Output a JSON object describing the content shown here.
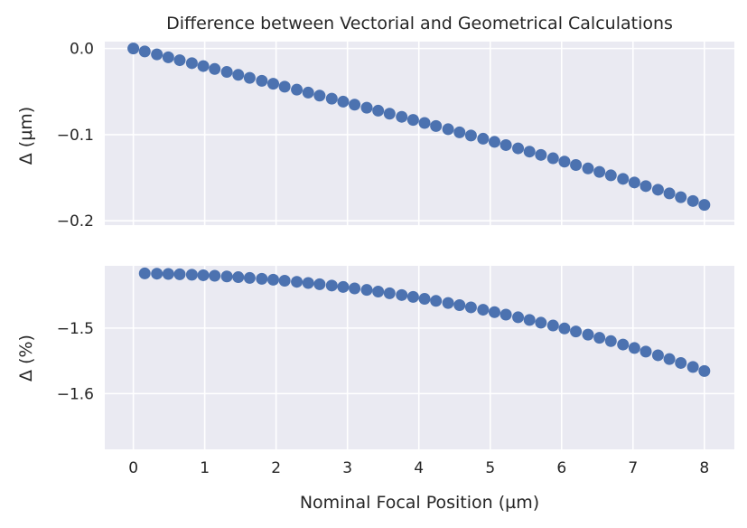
{
  "chart_data": [
    {
      "type": "scatter",
      "title": "Difference between Vectorial and Geometrical Calculations",
      "xlabel": "",
      "ylabel": "Δ (µm)",
      "xlim": [
        -0.4,
        8.42
      ],
      "ylim": [
        -0.205,
        0.008
      ],
      "grid": true,
      "color": "#4c72b0",
      "xticks": [
        0,
        1,
        2,
        3,
        4,
        5,
        6,
        7,
        8
      ],
      "xtick_labels_visible": false,
      "yticks": [
        0.0,
        -0.1,
        -0.2
      ],
      "ytick_labels": [
        "0.0",
        "−0.1",
        "−0.2"
      ],
      "series": [
        {
          "x": [
            0.0,
            0.16,
            0.33,
            0.49,
            0.65,
            0.82,
            0.98,
            1.14,
            1.31,
            1.47,
            1.63,
            1.8,
            1.96,
            2.12,
            2.29,
            2.45,
            2.61,
            2.78,
            2.94,
            3.1,
            3.27,
            3.43,
            3.59,
            3.76,
            3.92,
            4.08,
            4.24,
            4.41,
            4.57,
            4.73,
            4.9,
            5.06,
            5.22,
            5.39,
            5.55,
            5.71,
            5.88,
            6.04,
            6.2,
            6.37,
            6.53,
            6.69,
            6.86,
            7.02,
            7.18,
            7.35,
            7.51,
            7.67,
            7.84,
            8.0
          ],
          "y": [
            0.0,
            -0.0034,
            -0.0068,
            -0.0102,
            -0.0136,
            -0.017,
            -0.0204,
            -0.0238,
            -0.0272,
            -0.0306,
            -0.0341,
            -0.0375,
            -0.0409,
            -0.0443,
            -0.0478,
            -0.0512,
            -0.0547,
            -0.0582,
            -0.0617,
            -0.0652,
            -0.0687,
            -0.0722,
            -0.0757,
            -0.0793,
            -0.0829,
            -0.0864,
            -0.09,
            -0.0937,
            -0.0973,
            -0.101,
            -0.1047,
            -0.1084,
            -0.1121,
            -0.1159,
            -0.1197,
            -0.1235,
            -0.1274,
            -0.1313,
            -0.1352,
            -0.1392,
            -0.1432,
            -0.1472,
            -0.1513,
            -0.1555,
            -0.1597,
            -0.1639,
            -0.1682,
            -0.1726,
            -0.177,
            -0.1815
          ]
        }
      ]
    },
    {
      "type": "scatter",
      "title": "",
      "xlabel": "Nominal Focal Position (µm)",
      "ylabel": "Δ (%)",
      "xlim": [
        -0.4,
        8.42
      ],
      "ylim": [
        -1.685,
        -1.405
      ],
      "grid": true,
      "color": "#4c72b0",
      "xticks": [
        0,
        1,
        2,
        3,
        4,
        5,
        6,
        7,
        8
      ],
      "xtick_labels": [
        "0",
        "1",
        "2",
        "3",
        "4",
        "5",
        "6",
        "7",
        "8"
      ],
      "yticks": [
        -1.5,
        -1.6
      ],
      "ytick_labels": [
        "−1.5",
        "−1.6"
      ],
      "series": [
        {
          "x": [
            0.16,
            0.33,
            0.49,
            0.65,
            0.82,
            0.98,
            1.14,
            1.31,
            1.47,
            1.63,
            1.8,
            1.96,
            2.12,
            2.29,
            2.45,
            2.61,
            2.78,
            2.94,
            3.1,
            3.27,
            3.43,
            3.59,
            3.76,
            3.92,
            4.08,
            4.24,
            4.41,
            4.57,
            4.73,
            4.9,
            5.06,
            5.22,
            5.39,
            5.55,
            5.71,
            5.88,
            6.04,
            6.2,
            6.37,
            6.53,
            6.69,
            6.86,
            7.02,
            7.18,
            7.35,
            7.51,
            7.67,
            7.84,
            8.0
          ],
          "y": [
            -1.4166,
            -1.417,
            -1.4174,
            -1.4179,
            -1.4186,
            -1.4194,
            -1.4202,
            -1.4212,
            -1.4223,
            -1.4235,
            -1.4248,
            -1.4262,
            -1.4278,
            -1.4294,
            -1.4312,
            -1.4331,
            -1.4351,
            -1.4372,
            -1.4395,
            -1.4418,
            -1.4443,
            -1.4469,
            -1.4496,
            -1.4524,
            -1.4554,
            -1.4585,
            -1.4617,
            -1.465,
            -1.4684,
            -1.472,
            -1.4757,
            -1.4795,
            -1.4835,
            -1.4876,
            -1.4918,
            -1.4961,
            -1.5006,
            -1.5052,
            -1.51,
            -1.5149,
            -1.5199,
            -1.5251,
            -1.5304,
            -1.5359,
            -1.5415,
            -1.5473,
            -1.5532,
            -1.5593,
            -1.5655
          ]
        }
      ]
    }
  ]
}
